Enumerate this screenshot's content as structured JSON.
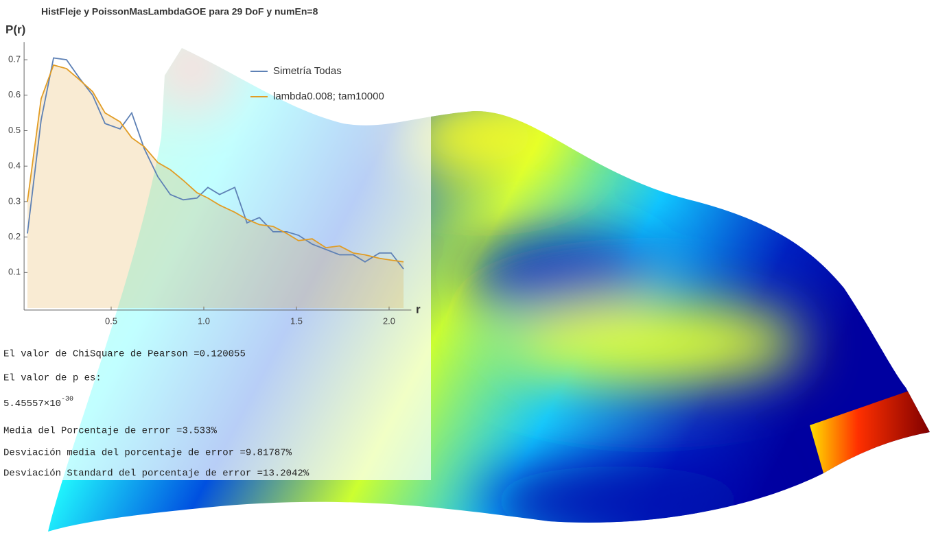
{
  "chart_data": {
    "type": "line",
    "title": "HistFleje y PoissonMasLambdaGOE para 29 DoF y numEn=8",
    "ylabel": "P(r)",
    "xlabel": "r",
    "x": [
      0.048,
      0.122,
      0.189,
      0.259,
      0.326,
      0.4,
      0.467,
      0.548,
      0.611,
      0.678,
      0.752,
      0.819,
      0.889,
      0.963,
      1.022,
      1.085,
      1.167,
      1.233,
      1.3,
      1.374,
      1.448,
      1.511,
      1.585,
      1.659,
      1.733,
      1.807,
      1.87,
      1.948,
      2.011,
      2.078
    ],
    "series": [
      {
        "name": "Simetría Todas",
        "color": "#5e81b5",
        "values": [
          0.21,
          0.53,
          0.705,
          0.7,
          0.65,
          0.6,
          0.52,
          0.505,
          0.55,
          0.45,
          0.37,
          0.32,
          0.305,
          0.31,
          0.34,
          0.32,
          0.34,
          0.24,
          0.255,
          0.215,
          0.215,
          0.205,
          0.18,
          0.165,
          0.15,
          0.15,
          0.13,
          0.155,
          0.155,
          0.11
        ]
      },
      {
        "name": "lambda0.008; tam10000",
        "color": "#e19c24",
        "fill": true,
        "values": [
          0.3,
          0.59,
          0.685,
          0.675,
          0.645,
          0.61,
          0.55,
          0.525,
          0.48,
          0.455,
          0.41,
          0.39,
          0.36,
          0.325,
          0.31,
          0.29,
          0.27,
          0.25,
          0.235,
          0.23,
          0.21,
          0.19,
          0.195,
          0.17,
          0.175,
          0.155,
          0.15,
          0.14,
          0.135,
          0.13
        ]
      }
    ],
    "xlim": [
      0.03,
      2.12
    ],
    "ylim": [
      0,
      0.75
    ],
    "xticks": [
      0.5,
      {
        "value": 1,
        "label": "1.0"
      },
      1.5,
      {
        "value": 2,
        "label": "2.0"
      }
    ],
    "yticks": [
      0.1,
      0.2,
      0.3,
      0.4,
      0.5,
      0.6,
      0.7
    ],
    "legend": "top-right"
  },
  "output": {
    "chi": "El valor de ChiSquare de Pearson =0.120055",
    "p_label": "El valor de p es:",
    "p_mantissa": "5.45557×10",
    "p_exponent": "-30",
    "media": "Media del Porcentaje de error =3.533%",
    "desv_media": "Desviación media del porcentaje de error =9.81787%",
    "desv_std": "Desviación Standard del porcentaje de error =13.2042%"
  }
}
